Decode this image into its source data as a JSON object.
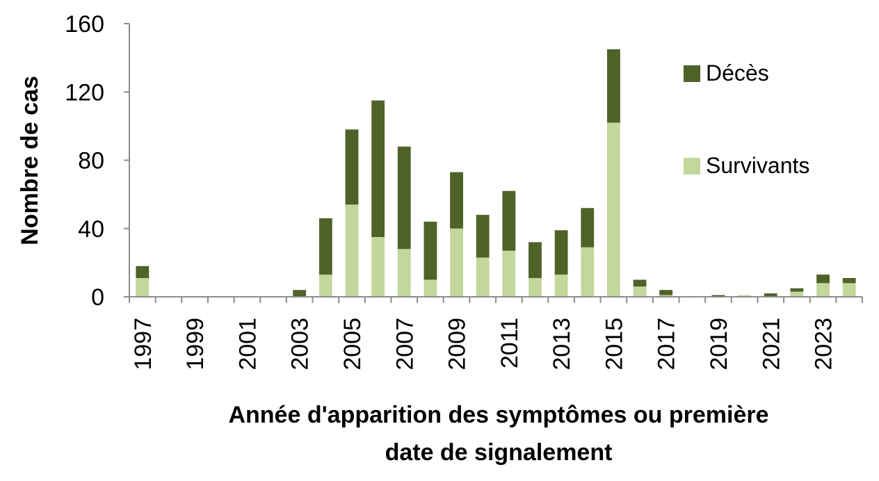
{
  "chart_data": {
    "type": "bar",
    "stacked": true,
    "ylabel": "Nombre de cas",
    "xlabel_lines": [
      "Année d'apparition des symptômes ou première",
      "date de signalement"
    ],
    "ylim": [
      0,
      160
    ],
    "yticks": [
      0,
      40,
      80,
      120,
      160
    ],
    "categories": [
      "1997",
      "1998",
      "1999",
      "2000",
      "2001",
      "2002",
      "2003",
      "2004",
      "2005",
      "2006",
      "2007",
      "2008",
      "2009",
      "2010",
      "2011",
      "2012",
      "2013",
      "2014",
      "2015",
      "2016",
      "2017",
      "2018",
      "2019",
      "2020",
      "2021",
      "2022",
      "2023",
      "2024"
    ],
    "xtick_labels": [
      "1997",
      "1999",
      "2001",
      "2003",
      "2005",
      "2007",
      "2009",
      "2011",
      "2013",
      "2015",
      "2017",
      "2019",
      "2021",
      "2023"
    ],
    "series": [
      {
        "name": "Survivants",
        "color": "#c3d69b",
        "values": [
          11,
          0,
          0,
          0,
          0,
          0,
          0,
          13,
          54,
          35,
          28,
          10,
          40,
          23,
          27,
          11,
          13,
          29,
          102,
          6,
          1,
          0,
          0,
          1,
          0,
          3,
          8,
          8
        ]
      },
      {
        "name": "Décès",
        "color": "#4f6228",
        "values": [
          7,
          0,
          0,
          0,
          0,
          0,
          4,
          33,
          44,
          80,
          60,
          34,
          33,
          25,
          35,
          21,
          26,
          23,
          43,
          4,
          3,
          0,
          1,
          0,
          2,
          2,
          5,
          3
        ]
      }
    ],
    "legend_order": [
      "Décès",
      "Survivants"
    ],
    "legend_position": "top-right",
    "grid": false
  }
}
